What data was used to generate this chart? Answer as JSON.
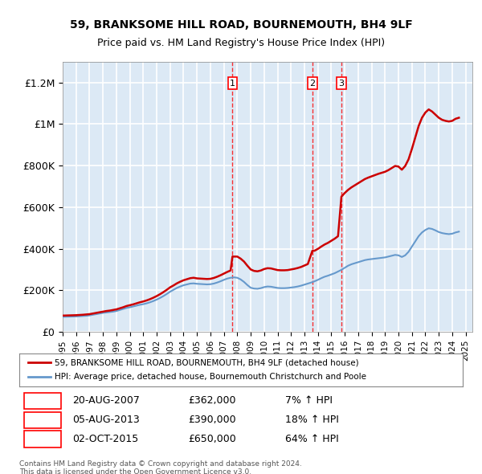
{
  "title1": "59, BRANKSOME HILL ROAD, BOURNEMOUTH, BH4 9LF",
  "title2": "Price paid vs. HM Land Registry's House Price Index (HPI)",
  "ylabel_ticks": [
    "£0",
    "£200K",
    "£400K",
    "£600K",
    "£800K",
    "£1M",
    "£1.2M"
  ],
  "ytick_values": [
    0,
    200000,
    400000,
    600000,
    800000,
    1000000,
    1200000
  ],
  "ylim": [
    0,
    1300000
  ],
  "xlim_start": 1995.0,
  "xlim_end": 2025.5,
  "background_color": "#dce9f5",
  "plot_bg": "#dce9f5",
  "grid_color": "#ffffff",
  "red_color": "#cc0000",
  "blue_color": "#6699cc",
  "legend_line1": "59, BRANKSOME HILL ROAD, BOURNEMOUTH, BH4 9LF (detached house)",
  "legend_line2": "HPI: Average price, detached house, Bournemouth Christchurch and Poole",
  "sale1_x": 2007.64,
  "sale1_label": "1",
  "sale1_date": "20-AUG-2007",
  "sale1_price": "£362,000",
  "sale1_hpi": "7% ↑ HPI",
  "sale2_x": 2013.59,
  "sale2_label": "2",
  "sale2_date": "05-AUG-2013",
  "sale2_price": "£390,000",
  "sale2_hpi": "18% ↑ HPI",
  "sale3_x": 2015.75,
  "sale3_label": "3",
  "sale3_date": "02-OCT-2015",
  "sale3_price": "£650,000",
  "sale3_hpi": "64% ↑ HPI",
  "footer1": "Contains HM Land Registry data © Crown copyright and database right 2024.",
  "footer2": "This data is licensed under the Open Government Licence v3.0.",
  "hpi_data": {
    "years": [
      1995.0,
      1995.25,
      1995.5,
      1995.75,
      1996.0,
      1996.25,
      1996.5,
      1996.75,
      1997.0,
      1997.25,
      1997.5,
      1997.75,
      1998.0,
      1998.25,
      1998.5,
      1998.75,
      1999.0,
      1999.25,
      1999.5,
      1999.75,
      2000.0,
      2000.25,
      2000.5,
      2000.75,
      2001.0,
      2001.25,
      2001.5,
      2001.75,
      2002.0,
      2002.25,
      2002.5,
      2002.75,
      2003.0,
      2003.25,
      2003.5,
      2003.75,
      2004.0,
      2004.25,
      2004.5,
      2004.75,
      2005.0,
      2005.25,
      2005.5,
      2005.75,
      2006.0,
      2006.25,
      2006.5,
      2006.75,
      2007.0,
      2007.25,
      2007.5,
      2007.75,
      2008.0,
      2008.25,
      2008.5,
      2008.75,
      2009.0,
      2009.25,
      2009.5,
      2009.75,
      2010.0,
      2010.25,
      2010.5,
      2010.75,
      2011.0,
      2011.25,
      2011.5,
      2011.75,
      2012.0,
      2012.25,
      2012.5,
      2012.75,
      2013.0,
      2013.25,
      2013.5,
      2013.75,
      2014.0,
      2014.25,
      2014.5,
      2014.75,
      2015.0,
      2015.25,
      2015.5,
      2015.75,
      2016.0,
      2016.25,
      2016.5,
      2016.75,
      2017.0,
      2017.25,
      2017.5,
      2017.75,
      2018.0,
      2018.25,
      2018.5,
      2018.75,
      2019.0,
      2019.25,
      2019.5,
      2019.75,
      2020.0,
      2020.25,
      2020.5,
      2020.75,
      2021.0,
      2021.25,
      2021.5,
      2021.75,
      2022.0,
      2022.25,
      2022.5,
      2022.75,
      2023.0,
      2023.25,
      2023.5,
      2023.75,
      2024.0,
      2024.25,
      2024.5
    ],
    "values": [
      72000,
      72500,
      73000,
      73500,
      74000,
      75000,
      76000,
      77000,
      79000,
      82000,
      85000,
      88000,
      91000,
      93000,
      95000,
      97000,
      100000,
      105000,
      110000,
      115000,
      118000,
      122000,
      126000,
      130000,
      133000,
      137000,
      142000,
      148000,
      155000,
      163000,
      172000,
      182000,
      193000,
      202000,
      211000,
      218000,
      224000,
      228000,
      232000,
      233000,
      231000,
      230000,
      229000,
      228000,
      229000,
      232000,
      237000,
      243000,
      250000,
      256000,
      260000,
      262000,
      260000,
      252000,
      240000,
      225000,
      212000,
      208000,
      207000,
      210000,
      215000,
      218000,
      217000,
      214000,
      211000,
      210000,
      210000,
      211000,
      213000,
      215000,
      218000,
      222000,
      227000,
      232000,
      237000,
      243000,
      250000,
      258000,
      265000,
      270000,
      276000,
      282000,
      290000,
      298000,
      308000,
      318000,
      325000,
      330000,
      335000,
      340000,
      345000,
      348000,
      350000,
      352000,
      354000,
      356000,
      358000,
      362000,
      366000,
      370000,
      368000,
      360000,
      368000,
      385000,
      410000,
      435000,
      460000,
      478000,
      490000,
      498000,
      495000,
      488000,
      480000,
      475000,
      472000,
      470000,
      472000,
      478000,
      482000
    ]
  },
  "house_data": {
    "years": [
      1995.0,
      1995.25,
      1995.5,
      1995.75,
      1996.0,
      1996.25,
      1996.5,
      1996.75,
      1997.0,
      1997.25,
      1997.5,
      1997.75,
      1998.0,
      1998.25,
      1998.5,
      1998.75,
      1999.0,
      1999.25,
      1999.5,
      1999.75,
      2000.0,
      2000.25,
      2000.5,
      2000.75,
      2001.0,
      2001.25,
      2001.5,
      2001.75,
      2002.0,
      2002.25,
      2002.5,
      2002.75,
      2003.0,
      2003.25,
      2003.5,
      2003.75,
      2004.0,
      2004.25,
      2004.5,
      2004.75,
      2005.0,
      2005.25,
      2005.5,
      2005.75,
      2006.0,
      2006.25,
      2006.5,
      2006.75,
      2007.0,
      2007.25,
      2007.5,
      2007.64,
      2007.75,
      2008.0,
      2008.25,
      2008.5,
      2008.75,
      2009.0,
      2009.25,
      2009.5,
      2009.75,
      2010.0,
      2010.25,
      2010.5,
      2010.75,
      2011.0,
      2011.25,
      2011.5,
      2011.75,
      2012.0,
      2012.25,
      2012.5,
      2012.75,
      2013.0,
      2013.25,
      2013.59,
      2013.75,
      2014.0,
      2014.25,
      2014.5,
      2014.75,
      2015.0,
      2015.25,
      2015.5,
      2015.75,
      2016.0,
      2016.25,
      2016.5,
      2016.75,
      2017.0,
      2017.25,
      2017.5,
      2017.75,
      2018.0,
      2018.25,
      2018.5,
      2018.75,
      2019.0,
      2019.25,
      2019.5,
      2019.75,
      2020.0,
      2020.25,
      2020.5,
      2020.75,
      2021.0,
      2021.25,
      2021.5,
      2021.75,
      2022.0,
      2022.25,
      2022.5,
      2022.75,
      2023.0,
      2023.25,
      2023.5,
      2023.75,
      2024.0,
      2024.25,
      2024.5
    ],
    "values": [
      78000,
      78500,
      79000,
      79500,
      80000,
      81000,
      82000,
      83500,
      85000,
      88000,
      91000,
      94000,
      97000,
      100000,
      102000,
      105000,
      108000,
      113000,
      118000,
      124000,
      128000,
      132000,
      137000,
      142000,
      146000,
      151000,
      157000,
      164000,
      172000,
      181000,
      191000,
      202000,
      214000,
      223000,
      233000,
      241000,
      248000,
      253000,
      258000,
      260000,
      257000,
      256000,
      255000,
      254000,
      255000,
      259000,
      265000,
      272000,
      280000,
      288000,
      295000,
      362000,
      362000,
      362000,
      352000,
      338000,
      318000,
      300000,
      293000,
      291000,
      295000,
      302000,
      306000,
      305000,
      301000,
      297000,
      296000,
      296000,
      297000,
      300000,
      303000,
      307000,
      312000,
      319000,
      326000,
      390000,
      390000,
      399000,
      410000,
      420000,
      428000,
      438000,
      448000,
      460000,
      650000,
      668000,
      683000,
      695000,
      705000,
      715000,
      725000,
      735000,
      742000,
      748000,
      754000,
      760000,
      765000,
      770000,
      778000,
      788000,
      798000,
      795000,
      780000,
      798000,
      830000,
      880000,
      935000,
      990000,
      1030000,
      1055000,
      1070000,
      1060000,
      1045000,
      1030000,
      1020000,
      1015000,
      1012000,
      1015000,
      1025000,
      1030000
    ]
  }
}
